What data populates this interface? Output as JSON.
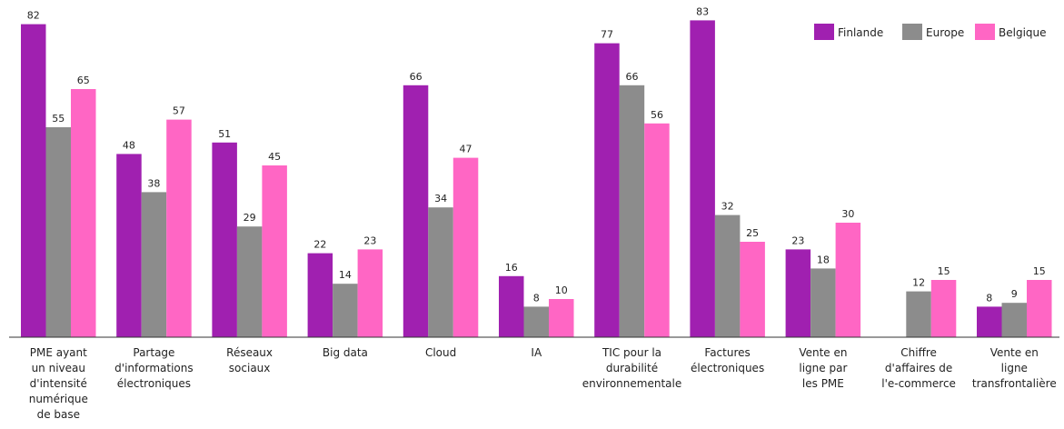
{
  "chart_data": {
    "type": "bar",
    "categories": [
      [
        "PME ayant",
        "un niveau",
        "d'intensité",
        "numérique",
        "de base"
      ],
      [
        "Partage",
        "d'informations",
        "électroniques"
      ],
      [
        "Réseaux",
        "sociaux"
      ],
      [
        "Big data"
      ],
      [
        "Cloud"
      ],
      [
        "IA"
      ],
      [
        "TIC pour la",
        "durabilité",
        "environnementale"
      ],
      [
        "Factures",
        "électroniques"
      ],
      [
        "Vente en",
        "ligne par",
        "les PME"
      ],
      [
        "Chiffre",
        "d'affaires de",
        "l'e-commerce"
      ],
      [
        "Vente en",
        "ligne",
        "transfrontalière"
      ]
    ],
    "series": [
      {
        "name": "Finlande",
        "color": "#a020b0",
        "values": [
          82,
          48,
          51,
          22,
          66,
          16,
          77,
          83,
          23,
          null,
          8
        ]
      },
      {
        "name": "Europe",
        "color": "#8c8c8c",
        "values": [
          55,
          38,
          29,
          14,
          34,
          8,
          66,
          32,
          18,
          12,
          9
        ]
      },
      {
        "name": "Belgique",
        "color": "#ff66c4",
        "values": [
          65,
          57,
          45,
          23,
          47,
          10,
          56,
          25,
          30,
          15,
          15
        ]
      }
    ],
    "ylim": [
      0,
      85
    ],
    "grid": false,
    "legend": "top-right",
    "data_labels": true
  }
}
